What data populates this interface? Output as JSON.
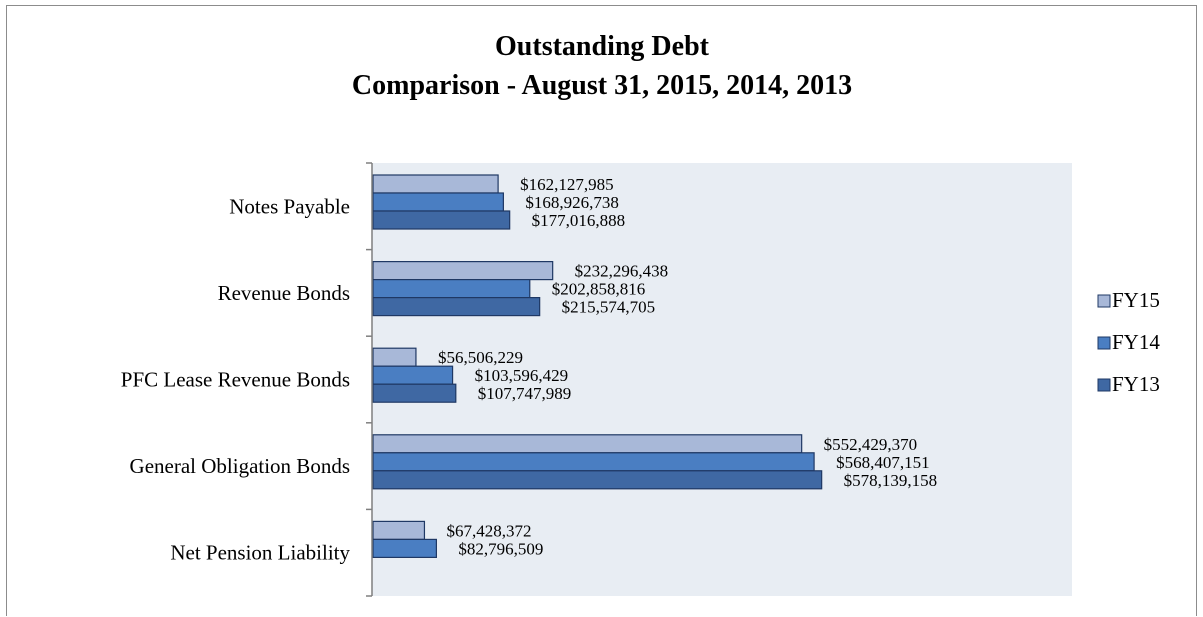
{
  "chart_data": {
    "type": "bar",
    "orientation": "horizontal",
    "title": "Outstanding Debt",
    "subtitle": "Comparison - August 31, 2015, 2014, 2013",
    "categories": [
      "Notes Payable",
      "Revenue Bonds",
      "PFC Lease Revenue Bonds",
      "General Obligation Bonds",
      "Net Pension Liability"
    ],
    "series": [
      {
        "name": "FY15",
        "color": "#a8b8d8",
        "values": [
          162127985,
          232296438,
          56506229,
          552429370,
          67428372
        ],
        "labels": [
          "$162,127,985",
          "$232,296,438",
          "$56,506,229",
          "$552,429,370",
          "$67,428,372"
        ]
      },
      {
        "name": "FY14",
        "color": "#4a7ec2",
        "values": [
          168926738,
          202858816,
          103596429,
          568407151,
          82796509
        ],
        "labels": [
          "$168,926,738",
          "$202,858,816",
          "$103,596,429",
          "$568,407,151",
          "$82,796,509"
        ]
      },
      {
        "name": "FY13",
        "color": "#3f68a3",
        "values": [
          177016888,
          215574705,
          107747989,
          578139158,
          null
        ],
        "labels": [
          "$177,016,888",
          "$215,574,705",
          "$107,747,989",
          "$578,139,158",
          ""
        ]
      }
    ],
    "xlim": [
      0,
      900000000
    ],
    "grid": false,
    "legend_position": "right",
    "plot_background": "#e8edf3",
    "bar_border_color": "#1f3864"
  }
}
